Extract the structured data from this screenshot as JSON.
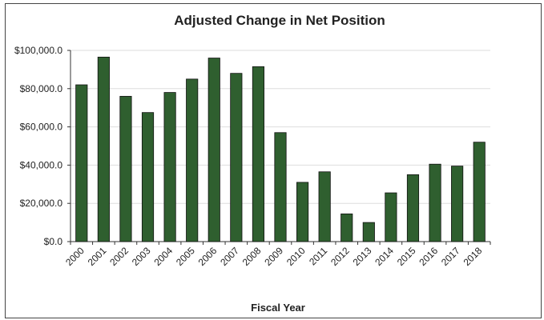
{
  "chart_data": {
    "type": "bar",
    "title": "Adjusted Change in Net Position",
    "x_label": "Fiscal Year",
    "categories": [
      "2000",
      "2001",
      "2002",
      "2003",
      "2004",
      "2005",
      "2006",
      "2007",
      "2008",
      "2009",
      "2010",
      "2011",
      "2012",
      "2013",
      "2014",
      "2015",
      "2016",
      "2017",
      "2018"
    ],
    "values": [
      82000,
      96500,
      76000,
      67500,
      78000,
      85000,
      96000,
      88000,
      91500,
      57000,
      31000,
      36500,
      14500,
      10000,
      25500,
      35000,
      40500,
      39500,
      52000
    ],
    "color": "#2f5f2f",
    "ylim": [
      0,
      100000
    ],
    "yticks": [
      {
        "value": 0,
        "label": "$0.0"
      },
      {
        "value": 20000,
        "label": "$20,000.0"
      },
      {
        "value": 40000,
        "label": "$40,000.0"
      },
      {
        "value": 60000,
        "label": "$60,000.0"
      },
      {
        "value": 80000,
        "label": "$80,000.0"
      },
      {
        "value": 100000,
        "label": "$100,000.0"
      }
    ],
    "grid": true
  }
}
